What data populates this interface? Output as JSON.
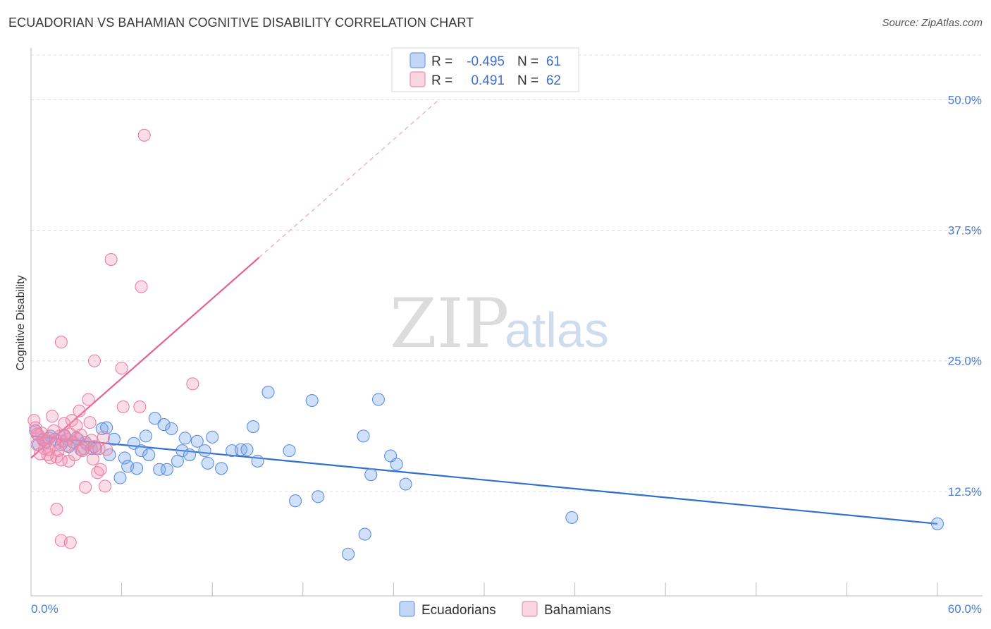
{
  "header": {
    "title": "ECUADORIAN VS BAHAMIAN COGNITIVE DISABILITY CORRELATION CHART",
    "source": "Source: ZipAtlas.com"
  },
  "watermark": {
    "zip": "ZIP",
    "atlas": "atlas"
  },
  "legend": {
    "r_label": "R =",
    "n_label": "N =",
    "rows": [
      {
        "name": "Ecuadorians",
        "r": "-0.495",
        "n": "61",
        "color": "#5b8fe0"
      },
      {
        "name": "Bahamians",
        "r": "0.491",
        "n": "62",
        "color": "#ee8aaa"
      }
    ]
  },
  "chart_data": {
    "type": "scatter",
    "title": "ECUADORIAN VS BAHAMIAN COGNITIVE DISABILITY CORRELATION CHART",
    "xlabel": "",
    "ylabel": "Cognitive Disability",
    "xlim": [
      0,
      60
    ],
    "ylim": [
      2.5,
      53
    ],
    "x_tick_labels": [
      "0.0%",
      "60.0%"
    ],
    "y_ticks": [
      12.5,
      25.0,
      37.5,
      50.0
    ],
    "y_tick_labels": [
      "12.5%",
      "25.0%",
      "37.5%",
      "50.0%"
    ],
    "grid": true,
    "series": [
      {
        "name": "Ecuadorians",
        "color": "#5b8fe0",
        "fill": "rgba(120,165,235,0.35)",
        "points": [
          [
            0.3,
            18.3
          ],
          [
            0.5,
            17.0
          ],
          [
            0.8,
            17.5
          ],
          [
            1.0,
            17.2
          ],
          [
            1.3,
            17.8
          ],
          [
            1.6,
            17.5
          ],
          [
            2.0,
            17.0
          ],
          [
            2.2,
            17.8
          ],
          [
            2.5,
            16.8
          ],
          [
            2.8,
            17.2
          ],
          [
            3.0,
            17.6
          ],
          [
            3.3,
            16.5
          ],
          [
            3.6,
            17.2
          ],
          [
            4.0,
            16.6
          ],
          [
            4.3,
            16.6
          ],
          [
            4.7,
            18.5
          ],
          [
            5.0,
            18.6
          ],
          [
            5.2,
            16.0
          ],
          [
            5.5,
            17.5
          ],
          [
            5.9,
            13.8
          ],
          [
            6.2,
            15.7
          ],
          [
            6.4,
            14.9
          ],
          [
            6.8,
            17.1
          ],
          [
            7.0,
            14.7
          ],
          [
            7.3,
            16.4
          ],
          [
            7.6,
            17.8
          ],
          [
            7.8,
            16.0
          ],
          [
            8.2,
            19.5
          ],
          [
            8.5,
            14.6
          ],
          [
            8.8,
            18.9
          ],
          [
            9.0,
            14.6
          ],
          [
            9.3,
            18.5
          ],
          [
            9.7,
            15.4
          ],
          [
            10.0,
            16.4
          ],
          [
            10.2,
            17.6
          ],
          [
            10.5,
            16.0
          ],
          [
            11.0,
            17.3
          ],
          [
            11.5,
            16.4
          ],
          [
            11.7,
            15.2
          ],
          [
            12.0,
            17.7
          ],
          [
            12.6,
            14.7
          ],
          [
            13.3,
            16.4
          ],
          [
            13.9,
            16.5
          ],
          [
            14.3,
            16.5
          ],
          [
            14.7,
            18.7
          ],
          [
            15.0,
            15.4
          ],
          [
            15.7,
            22.0
          ],
          [
            17.1,
            16.4
          ],
          [
            17.5,
            11.6
          ],
          [
            18.6,
            21.2
          ],
          [
            19.0,
            12.0
          ],
          [
            21.0,
            6.5
          ],
          [
            22.0,
            17.8
          ],
          [
            22.1,
            8.4
          ],
          [
            22.5,
            14.1
          ],
          [
            23.0,
            21.3
          ],
          [
            23.8,
            15.9
          ],
          [
            24.2,
            15.1
          ],
          [
            24.8,
            13.2
          ],
          [
            35.8,
            10.0
          ],
          [
            60.0,
            9.4
          ]
        ],
        "trend": {
          "x": [
            0,
            60
          ],
          "y": [
            17.8,
            9.4
          ]
        }
      },
      {
        "name": "Bahamians",
        "color": "#ee7fa2",
        "fill": "rgba(240,150,180,0.32)",
        "points": [
          [
            0.2,
            19.3
          ],
          [
            0.3,
            18.6
          ],
          [
            0.4,
            17.0
          ],
          [
            0.5,
            17.9
          ],
          [
            0.6,
            16.1
          ],
          [
            0.7,
            18.1
          ],
          [
            0.8,
            17.4
          ],
          [
            0.9,
            16.6
          ],
          [
            1.0,
            17.3
          ],
          [
            1.1,
            16.0
          ],
          [
            1.2,
            17.6
          ],
          [
            1.3,
            15.7
          ],
          [
            1.4,
            19.7
          ],
          [
            1.5,
            18.3
          ],
          [
            1.6,
            17.0
          ],
          [
            1.7,
            15.8
          ],
          [
            1.8,
            16.4
          ],
          [
            1.9,
            17.8
          ],
          [
            2.0,
            15.5
          ],
          [
            2.1,
            17.3
          ],
          [
            2.2,
            19.0
          ],
          [
            2.3,
            16.9
          ],
          [
            2.4,
            17.5
          ],
          [
            2.5,
            15.4
          ],
          [
            2.6,
            18.0
          ],
          [
            2.7,
            19.3
          ],
          [
            2.8,
            17.2
          ],
          [
            2.9,
            16.0
          ],
          [
            3.0,
            18.8
          ],
          [
            3.1,
            17.5
          ],
          [
            3.2,
            20.2
          ],
          [
            3.3,
            17.9
          ],
          [
            3.5,
            16.6
          ],
          [
            3.6,
            12.9
          ],
          [
            3.7,
            17.0
          ],
          [
            3.8,
            21.3
          ],
          [
            3.9,
            19.1
          ],
          [
            4.0,
            17.4
          ],
          [
            4.2,
            16.8
          ],
          [
            4.4,
            14.3
          ],
          [
            4.5,
            16.6
          ],
          [
            4.6,
            14.6
          ],
          [
            4.8,
            17.7
          ],
          [
            5.0,
            16.5
          ],
          [
            4.9,
            13.0
          ],
          [
            1.7,
            10.8
          ],
          [
            2.0,
            7.8
          ],
          [
            2.6,
            7.6
          ],
          [
            2.0,
            26.8
          ],
          [
            4.2,
            25.0
          ],
          [
            5.3,
            34.7
          ],
          [
            6.0,
            24.3
          ],
          [
            6.1,
            20.6
          ],
          [
            7.2,
            20.6
          ],
          [
            7.3,
            32.1
          ],
          [
            7.5,
            46.6
          ],
          [
            10.7,
            22.8
          ],
          [
            0.4,
            18.0
          ],
          [
            1.2,
            16.5
          ],
          [
            2.2,
            17.9
          ],
          [
            3.4,
            16.4
          ],
          [
            4.1,
            15.6
          ]
        ],
        "trend": {
          "x": [
            0,
            15.1
          ],
          "y": [
            15.7,
            34.9
          ]
        },
        "trend_extension": {
          "x": [
            15.1,
            27.0
          ],
          "y": [
            34.9,
            50.0
          ]
        }
      }
    ]
  }
}
